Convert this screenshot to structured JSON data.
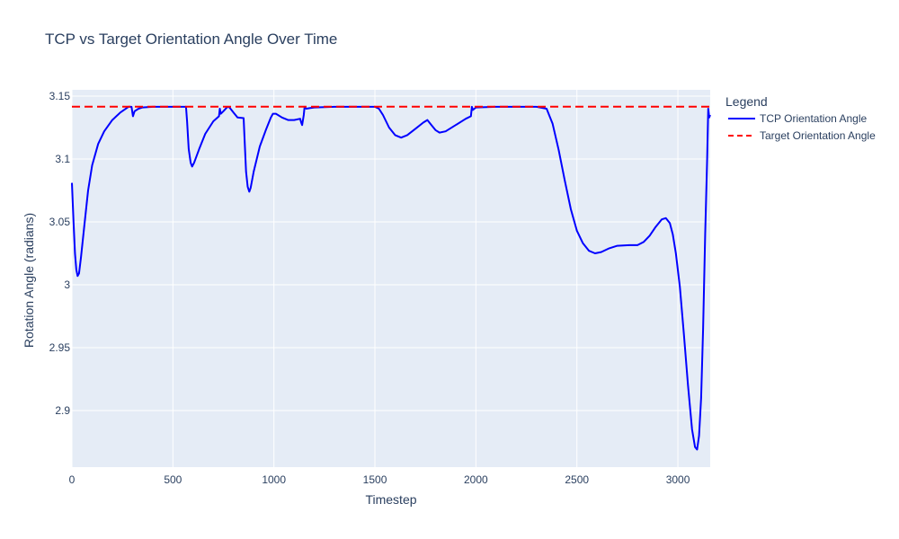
{
  "chart_data": {
    "type": "line",
    "title": "TCP vs Target Orientation Angle Over Time",
    "xlabel": "Timestep",
    "ylabel": "Rotation Angle (radians)",
    "xlim": [
      0,
      3160
    ],
    "ylim": [
      2.855,
      3.155
    ],
    "xticks": [
      0,
      500,
      1000,
      1500,
      2000,
      2500,
      3000
    ],
    "yticks": [
      2.9,
      2.95,
      3,
      3.05,
      3.1,
      3.15
    ],
    "grid": true,
    "legend": {
      "title": "Legend",
      "placement": "top-right"
    },
    "series": [
      {
        "name": "TCP Orientation Angle",
        "color": "#0000ff",
        "dash": "solid",
        "points": [
          [
            0,
            3.081
          ],
          [
            8,
            3.05
          ],
          [
            15,
            3.025
          ],
          [
            22,
            3.012
          ],
          [
            28,
            3.007
          ],
          [
            35,
            3.009
          ],
          [
            45,
            3.022
          ],
          [
            60,
            3.045
          ],
          [
            80,
            3.075
          ],
          [
            100,
            3.095
          ],
          [
            130,
            3.112
          ],
          [
            160,
            3.122
          ],
          [
            200,
            3.131
          ],
          [
            240,
            3.137
          ],
          [
            280,
            3.1415
          ],
          [
            295,
            3.1415
          ],
          [
            302,
            3.134
          ],
          [
            310,
            3.138
          ],
          [
            330,
            3.14
          ],
          [
            350,
            3.141
          ],
          [
            400,
            3.1415
          ],
          [
            500,
            3.1415
          ],
          [
            565,
            3.1415
          ],
          [
            570,
            3.13
          ],
          [
            578,
            3.108
          ],
          [
            588,
            3.097
          ],
          [
            595,
            3.094
          ],
          [
            605,
            3.097
          ],
          [
            630,
            3.108
          ],
          [
            660,
            3.12
          ],
          [
            700,
            3.13
          ],
          [
            728,
            3.134
          ],
          [
            732,
            3.14
          ],
          [
            737,
            3.136
          ],
          [
            750,
            3.138
          ],
          [
            770,
            3.1415
          ],
          [
            780,
            3.141
          ],
          [
            800,
            3.137
          ],
          [
            820,
            3.133
          ],
          [
            850,
            3.1325
          ],
          [
            855,
            3.115
          ],
          [
            862,
            3.09
          ],
          [
            870,
            3.078
          ],
          [
            878,
            3.074
          ],
          [
            885,
            3.077
          ],
          [
            900,
            3.09
          ],
          [
            930,
            3.11
          ],
          [
            960,
            3.123
          ],
          [
            985,
            3.133
          ],
          [
            995,
            3.136
          ],
          [
            1010,
            3.136
          ],
          [
            1040,
            3.133
          ],
          [
            1070,
            3.131
          ],
          [
            1100,
            3.131
          ],
          [
            1130,
            3.132
          ],
          [
            1135,
            3.129
          ],
          [
            1140,
            3.127
          ],
          [
            1148,
            3.135
          ],
          [
            1152,
            3.1415
          ],
          [
            1160,
            3.14
          ],
          [
            1180,
            3.1405
          ],
          [
            1200,
            3.141
          ],
          [
            1300,
            3.1415
          ],
          [
            1500,
            3.1415
          ],
          [
            1520,
            3.14
          ],
          [
            1540,
            3.135
          ],
          [
            1570,
            3.125
          ],
          [
            1600,
            3.119
          ],
          [
            1630,
            3.117
          ],
          [
            1660,
            3.119
          ],
          [
            1700,
            3.124
          ],
          [
            1740,
            3.129
          ],
          [
            1760,
            3.131
          ],
          [
            1780,
            3.127
          ],
          [
            1800,
            3.123
          ],
          [
            1820,
            3.121
          ],
          [
            1850,
            3.122
          ],
          [
            1900,
            3.127
          ],
          [
            1950,
            3.132
          ],
          [
            1975,
            3.134
          ],
          [
            1980,
            3.1415
          ],
          [
            1985,
            3.139
          ],
          [
            2000,
            3.141
          ],
          [
            2100,
            3.1415
          ],
          [
            2300,
            3.1415
          ],
          [
            2350,
            3.14
          ],
          [
            2380,
            3.128
          ],
          [
            2410,
            3.107
          ],
          [
            2440,
            3.083
          ],
          [
            2470,
            3.06
          ],
          [
            2500,
            3.043
          ],
          [
            2530,
            3.033
          ],
          [
            2560,
            3.027
          ],
          [
            2590,
            3.025
          ],
          [
            2620,
            3.026
          ],
          [
            2660,
            3.029
          ],
          [
            2700,
            3.031
          ],
          [
            2760,
            3.0315
          ],
          [
            2800,
            3.0315
          ],
          [
            2830,
            3.034
          ],
          [
            2860,
            3.039
          ],
          [
            2890,
            3.046
          ],
          [
            2920,
            3.052
          ],
          [
            2940,
            3.053
          ],
          [
            2960,
            3.049
          ],
          [
            2975,
            3.04
          ],
          [
            2990,
            3.025
          ],
          [
            3010,
            2.998
          ],
          [
            3030,
            2.96
          ],
          [
            3050,
            2.92
          ],
          [
            3070,
            2.885
          ],
          [
            3085,
            2.871
          ],
          [
            3095,
            2.869
          ],
          [
            3105,
            2.88
          ],
          [
            3115,
            2.91
          ],
          [
            3125,
            2.965
          ],
          [
            3135,
            3.04
          ],
          [
            3145,
            3.1
          ],
          [
            3150,
            3.14
          ],
          [
            3155,
            3.133
          ],
          [
            3160,
            3.135
          ]
        ]
      },
      {
        "name": "Target Orientation Angle",
        "color": "#ff0000",
        "dash": "dash",
        "points": [
          [
            0,
            3.1416
          ],
          [
            3160,
            3.1416
          ]
        ]
      }
    ]
  }
}
